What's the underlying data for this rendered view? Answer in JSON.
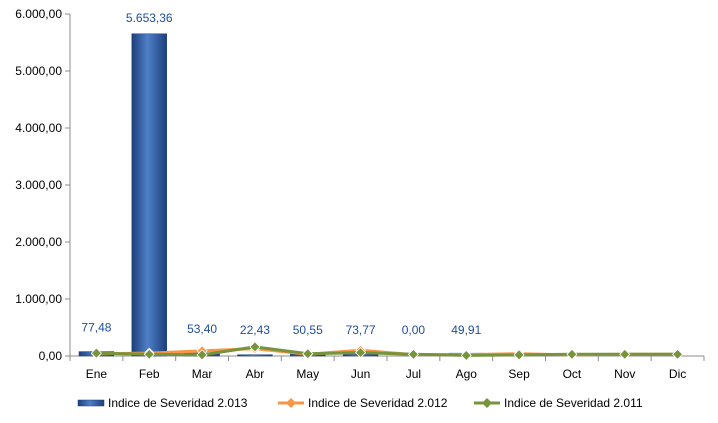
{
  "chart_data": {
    "type": "bar",
    "categories": [
      "Ene",
      "Feb",
      "Mar",
      "Abr",
      "May",
      "Jun",
      "Jul",
      "Ago",
      "Sep",
      "Oct",
      "Nov",
      "Dic"
    ],
    "ylim": [
      0,
      6000
    ],
    "yticks": [
      0,
      1000,
      2000,
      3000,
      4000,
      5000,
      6000
    ],
    "ytick_labels": [
      "0,00",
      "1.000,00",
      "2.000,00",
      "3.000,00",
      "4.000,00",
      "5.000,00",
      "6.000,00"
    ],
    "grid": false,
    "legend_position": "bottom",
    "series": [
      {
        "name": "Indice de Severidad 2.013",
        "type": "bar",
        "color": "#2e5fa8",
        "values": [
          77.48,
          5653.36,
          53.4,
          22.43,
          50.55,
          73.77,
          0.0,
          49.91,
          null,
          null,
          null,
          null
        ],
        "data_labels": [
          "77,48",
          "5.653,36",
          "53,40",
          "22,43",
          "50,55",
          "73,77",
          "0,00",
          "49,91",
          "",
          "",
          "",
          ""
        ]
      },
      {
        "name": "Indice de Severidad 2.012",
        "type": "line",
        "color": "#f79646",
        "values": [
          40,
          50,
          90,
          130,
          30,
          100,
          25,
          25,
          40,
          20,
          30,
          30
        ]
      },
      {
        "name": "Indice de Severidad 2.011",
        "type": "line",
        "color": "#77933c",
        "values": [
          50,
          30,
          20,
          160,
          40,
          60,
          30,
          10,
          20,
          30,
          30,
          30
        ]
      }
    ]
  }
}
